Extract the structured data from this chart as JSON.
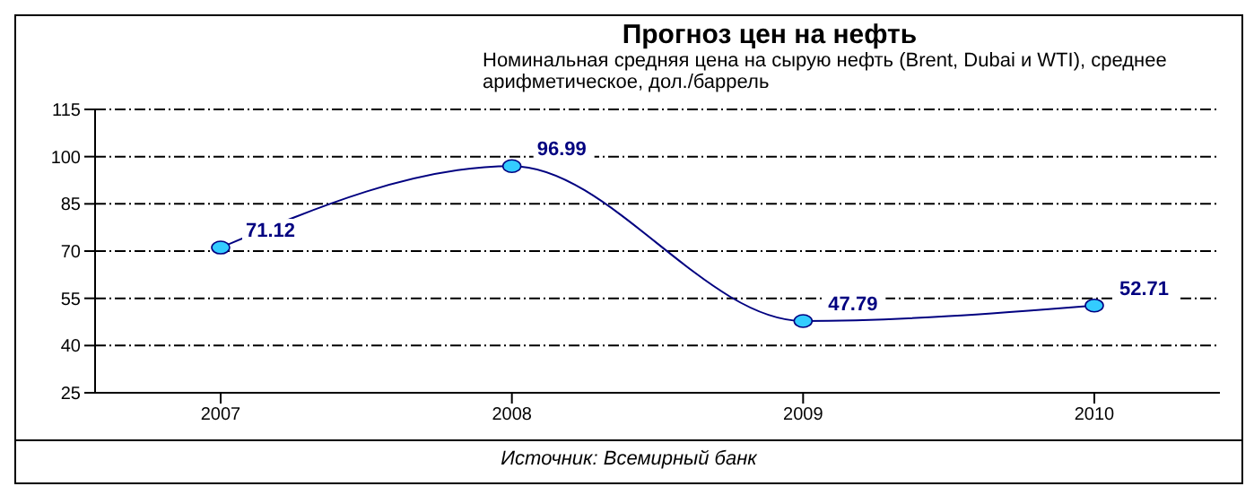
{
  "chart_data": {
    "type": "line",
    "title": "Прогноз цен на нефть",
    "subtitle": "Номинальная средняя цена на сырую нефть (Brent, Dubai и WTI), среднее арифметическое, дол./баррель",
    "annotations": [
      "Источник: Всемирный банк"
    ],
    "categories": [
      "2007",
      "2008",
      "2009",
      "2010"
    ],
    "series": [
      {
        "color": "#000080",
        "values": [
          71.12,
          96.99,
          47.79,
          52.71
        ]
      }
    ],
    "ylim": [
      25,
      115
    ],
    "yticks": [
      25,
      40,
      55,
      70,
      85,
      100,
      115
    ],
    "grid": "y",
    "marker": "circle",
    "line_style": "solid",
    "data_labels": true
  }
}
